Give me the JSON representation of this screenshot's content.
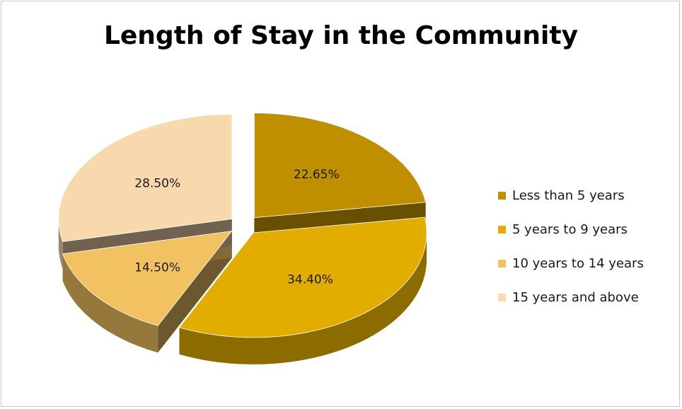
{
  "chart_data": {
    "type": "pie",
    "title": "Length of Stay in the Community",
    "categories": [
      "Less than 5 years",
      "5 years to 9 years",
      "10 years to 14 years",
      "15 years and above"
    ],
    "values": [
      22.65,
      34.4,
      14.5,
      28.5
    ],
    "data_labels": [
      "22.65%",
      "34.40%",
      "14.50%",
      "28.50%"
    ],
    "colors": [
      "#BF8F00",
      "#E2AC00",
      "#F2C161",
      "#F8D9AD"
    ],
    "legend": "right",
    "exploded": true,
    "style": "3d"
  }
}
